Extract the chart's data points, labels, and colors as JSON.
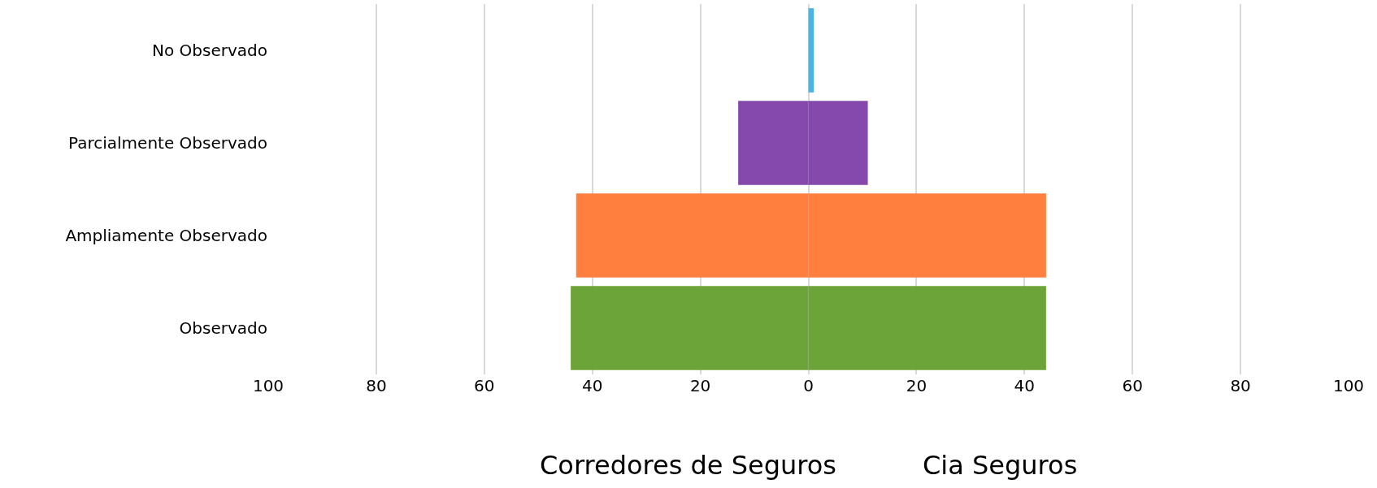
{
  "chart_data": {
    "type": "bar",
    "orientation": "horizontal",
    "categories": [
      "No Observado",
      "Parcialmente Observado",
      "Ampliamente Observado",
      "Observado"
    ],
    "series": [
      {
        "colors": [
          "#4db3e6",
          "#8549ad",
          "#ff7f3f",
          "#6ca439"
        ],
        "values": [
          null,
          -13,
          -43,
          -44
        ]
      },
      {
        "colors": [
          "#4db3e6",
          "#8549ad",
          "#ff7f3f",
          "#6ca439"
        ],
        "values": [
          1,
          11,
          44,
          44
        ]
      }
    ],
    "xlim": [
      -100,
      100
    ],
    "xticks": [
      {
        "value": -100,
        "label": "100"
      },
      {
        "value": -80,
        "label": "80"
      },
      {
        "value": -60,
        "label": "60"
      },
      {
        "value": -40,
        "label": "40"
      },
      {
        "value": -20,
        "label": "20"
      },
      0,
      20,
      40,
      60,
      80,
      100
    ],
    "grid": "x",
    "stacked": true,
    "annotations": [
      "Corredores de Seguros",
      "Cia Seguros"
    ]
  }
}
